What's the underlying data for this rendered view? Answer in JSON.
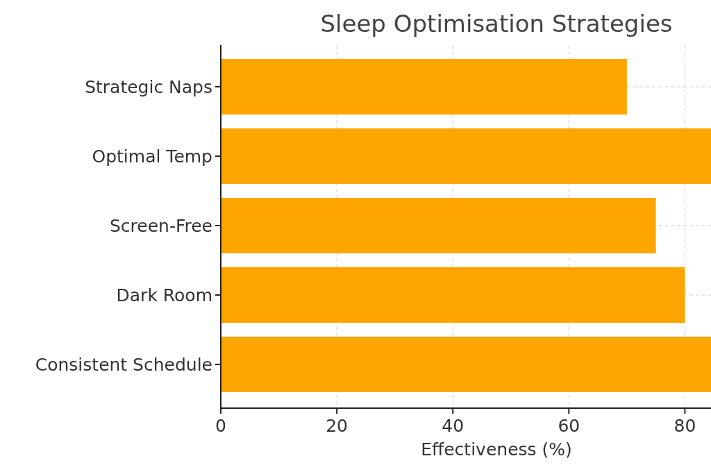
{
  "chart_data": {
    "type": "bar",
    "orientation": "horizontal",
    "title": "Sleep Optimisation Strategies",
    "xlabel": "Effectiveness (%)",
    "categories": [
      "Strategic Naps",
      "Optimal Temp",
      "Screen-Free",
      "Dark Room",
      "Consistent Schedule"
    ],
    "values": [
      70,
      84.5,
      75,
      80,
      84.5
    ],
    "color": "#ffa500",
    "xlim": [
      0,
      84.5
    ],
    "xticks": [
      0,
      20,
      40,
      60,
      80
    ],
    "grid": true
  }
}
